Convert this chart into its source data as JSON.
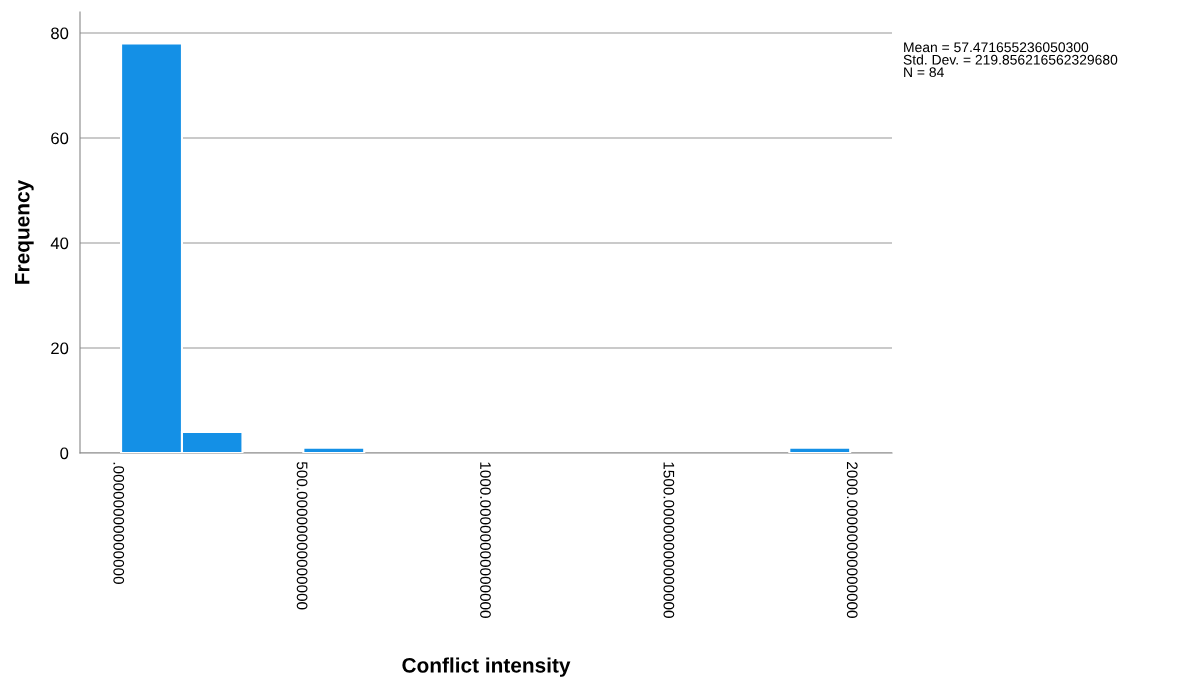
{
  "chart_data": {
    "type": "histogram",
    "xlabel": "Conflict intensity",
    "ylabel": "Frequency",
    "bins": [
      10,
      176,
      341,
      507,
      673,
      838,
      1004,
      1170,
      1335,
      1501,
      1667,
      1832,
      1998
    ],
    "values": [
      78,
      4,
      0,
      1,
      0,
      0,
      0,
      0,
      0,
      0,
      0,
      1
    ],
    "color": "#1490e6",
    "xlim": [
      -102,
      2112
    ],
    "ylim": [
      0,
      84
    ],
    "xticks": [
      {
        "value": 0,
        "label": ".00000000000000"
      },
      {
        "value": 500,
        "label": "500.00000000000000"
      },
      {
        "value": 1000,
        "label": "1000.00000000000000"
      },
      {
        "value": 1500,
        "label": "1500.00000000000000"
      },
      {
        "value": 2000,
        "label": "2000.00000000000000"
      }
    ],
    "yticks": [
      0,
      20,
      40,
      60,
      80
    ],
    "grid": "y",
    "annotations": [
      "Mean = 57.471655236050300\nStd. Dev. = 219.856216562329680\nN = 84"
    ]
  }
}
